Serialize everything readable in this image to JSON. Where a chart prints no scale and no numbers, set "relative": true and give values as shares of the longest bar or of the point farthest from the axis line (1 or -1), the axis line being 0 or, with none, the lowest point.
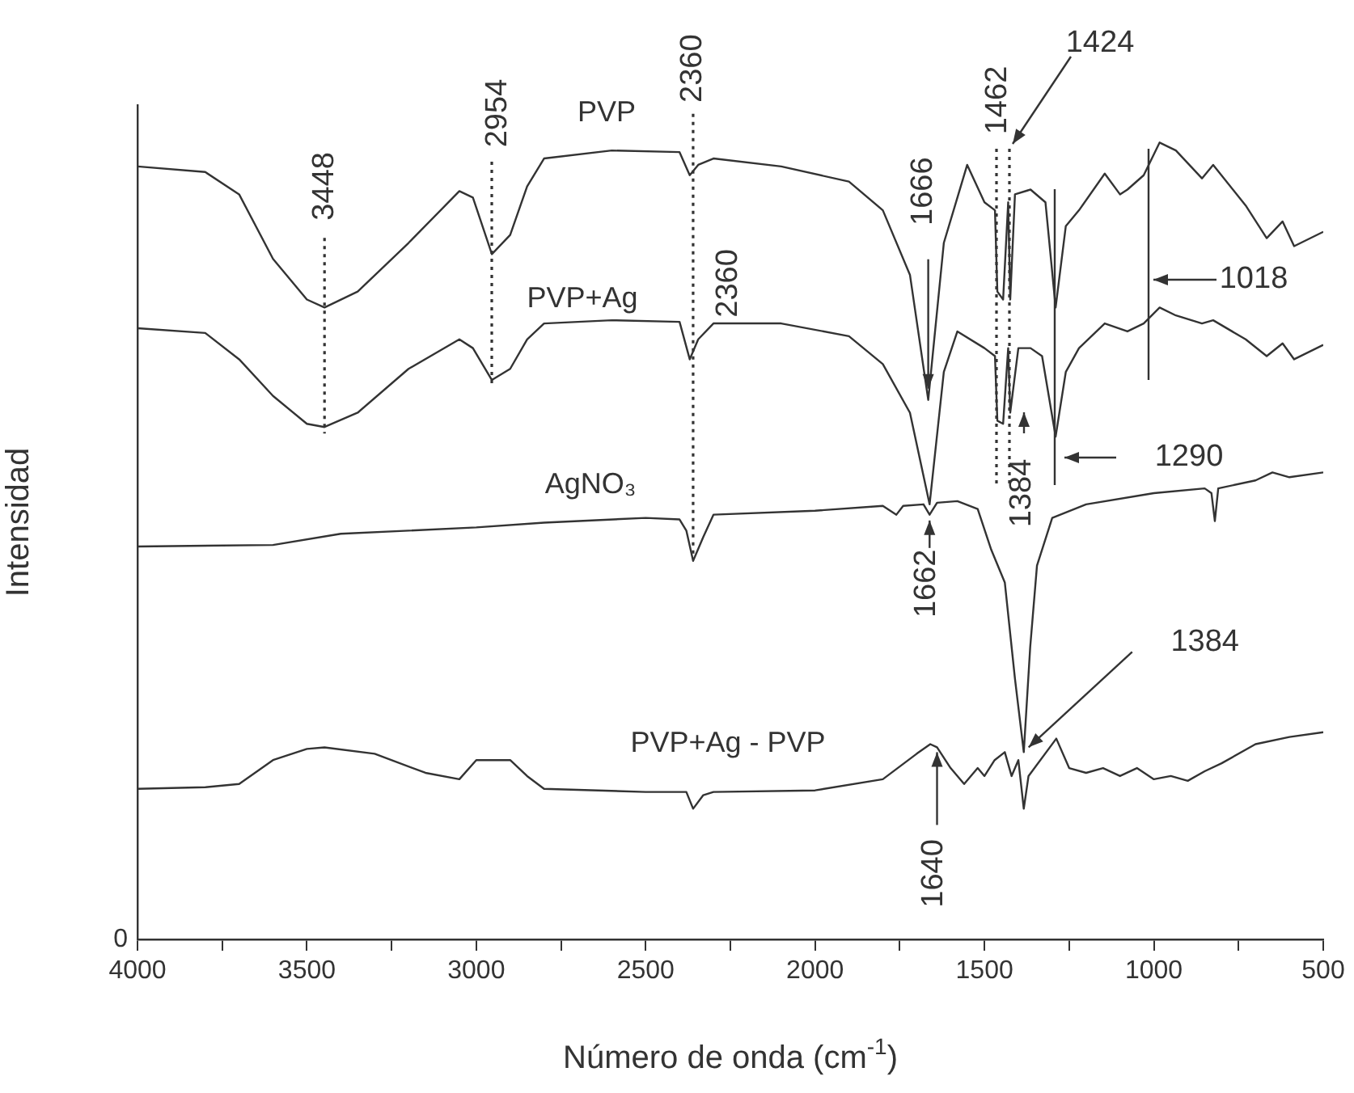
{
  "chart_data": {
    "type": "line",
    "xlabel": "Número de onda (cm$^{-1}$)",
    "ylabel": "Intensidad",
    "relative": true,
    "xlim": [
      4000,
      500
    ],
    "xticks": [
      4000,
      {
        "value": 3750,
        "label": null
      },
      3500,
      {
        "value": 3250,
        "label": null
      },
      3000,
      {
        "value": 2750,
        "label": null
      },
      2500,
      {
        "value": 2250,
        "label": null
      },
      2000,
      {
        "value": 1750,
        "label": null
      },
      1500,
      {
        "value": 1250,
        "label": null
      },
      1000,
      {
        "value": 750,
        "label": null
      },
      500
    ],
    "grid": false,
    "legend": false,
    "marker": "none",
    "line_style": "solid",
    "series": [
      {
        "name": "PVP",
        "color": "#333333",
        "x": [
          4000,
          3800,
          3700,
          3600,
          3500,
          3448,
          3350,
          3200,
          3050,
          3010,
          2954,
          2900,
          2850,
          2800,
          2600,
          2400,
          2370,
          2345,
          2300,
          2100,
          1900,
          1800,
          1720,
          1666,
          1620,
          1551,
          1500,
          1469,
          1462,
          1445,
          1430,
          1424,
          1410,
          1364,
          1320,
          1290,
          1260,
          1221,
          1145,
          1100,
          1078,
          1030,
          983,
          935,
          858,
          825,
          729,
          667,
          620,
          586,
          500
        ],
        "values": [
          0.97,
          0.963,
          0.935,
          0.854,
          0.803,
          0.793,
          0.813,
          0.874,
          0.939,
          0.931,
          0.86,
          0.884,
          0.945,
          0.98,
          0.99,
          0.988,
          0.959,
          0.972,
          0.98,
          0.97,
          0.951,
          0.915,
          0.834,
          0.677,
          0.874,
          0.972,
          0.925,
          0.915,
          0.813,
          0.803,
          0.925,
          0.803,
          0.935,
          0.941,
          0.925,
          0.793,
          0.895,
          0.915,
          0.961,
          0.935,
          0.941,
          0.959,
          1.0,
          0.99,
          0.955,
          0.972,
          0.921,
          0.88,
          0.901,
          0.87,
          0.888
        ]
      },
      {
        "name": "PVP+Ag",
        "color": "#333333",
        "x": [
          4000,
          3800,
          3700,
          3600,
          3500,
          3448,
          3350,
          3200,
          3050,
          3010,
          2954,
          2900,
          2850,
          2800,
          2600,
          2400,
          2370,
          2345,
          2300,
          2100,
          1900,
          1800,
          1720,
          1662,
          1620,
          1580,
          1500,
          1469,
          1462,
          1445,
          1430,
          1424,
          1400,
          1364,
          1330,
          1290,
          1260,
          1221,
          1145,
          1078,
          1030,
          983,
          935,
          858,
          825,
          729,
          667,
          620,
          586,
          500
        ],
        "values": [
          0.767,
          0.761,
          0.728,
          0.682,
          0.647,
          0.643,
          0.661,
          0.716,
          0.753,
          0.742,
          0.702,
          0.716,
          0.753,
          0.773,
          0.777,
          0.775,
          0.728,
          0.753,
          0.773,
          0.773,
          0.757,
          0.722,
          0.661,
          0.546,
          0.712,
          0.763,
          0.742,
          0.732,
          0.651,
          0.647,
          0.742,
          0.661,
          0.742,
          0.742,
          0.732,
          0.631,
          0.712,
          0.742,
          0.773,
          0.763,
          0.773,
          0.793,
          0.783,
          0.773,
          0.777,
          0.753,
          0.732,
          0.748,
          0.728,
          0.746
        ]
      },
      {
        "name": "AgNO₃",
        "color": "#333333",
        "x": [
          4000,
          3600,
          3400,
          3200,
          3000,
          2800,
          2500,
          2400,
          2380,
          2360,
          2330,
          2300,
          2000,
          1800,
          1760,
          1740,
          1680,
          1662,
          1640,
          1580,
          1520,
          1480,
          1440,
          1410,
          1384,
          1365,
          1345,
          1300,
          1200,
          1000,
          850,
          830,
          820,
          810,
          700,
          650,
          600,
          500
        ],
        "values": [
          0.493,
          0.495,
          0.509,
          0.513,
          0.517,
          0.523,
          0.529,
          0.527,
          0.513,
          0.475,
          0.505,
          0.533,
          0.538,
          0.544,
          0.533,
          0.544,
          0.546,
          0.533,
          0.548,
          0.55,
          0.54,
          0.489,
          0.448,
          0.327,
          0.235,
          0.367,
          0.469,
          0.529,
          0.546,
          0.56,
          0.566,
          0.56,
          0.525,
          0.566,
          0.576,
          0.586,
          0.58,
          0.586
        ]
      },
      {
        "name": "PVP+Ag - PVP",
        "color": "#333333",
        "x": [
          4000,
          3800,
          3700,
          3600,
          3500,
          3448,
          3300,
          3150,
          3050,
          3000,
          2900,
          2850,
          2800,
          2500,
          2380,
          2360,
          2330,
          2300,
          2000,
          1800,
          1700,
          1660,
          1640,
          1600,
          1560,
          1520,
          1500,
          1470,
          1440,
          1420,
          1400,
          1384,
          1370,
          1288,
          1250,
          1200,
          1150,
          1100,
          1050,
          1000,
          950,
          900,
          850,
          800,
          700,
          600,
          500
        ],
        "values": [
          0.189,
          0.191,
          0.195,
          0.225,
          0.239,
          0.241,
          0.233,
          0.209,
          0.201,
          0.225,
          0.225,
          0.205,
          0.189,
          0.185,
          0.185,
          0.164,
          0.181,
          0.185,
          0.187,
          0.201,
          0.233,
          0.245,
          0.241,
          0.215,
          0.195,
          0.215,
          0.205,
          0.225,
          0.235,
          0.205,
          0.225,
          0.164,
          0.205,
          0.252,
          0.215,
          0.209,
          0.215,
          0.205,
          0.215,
          0.201,
          0.205,
          0.199,
          0.211,
          0.221,
          0.245,
          0.254,
          0.26
        ]
      }
    ],
    "annotations": [
      {
        "text": "3448",
        "x": 3448,
        "y": 0.793
      },
      "2954",
      {
        "text": "2360",
        "x": 2360,
        "y": 0.959
      },
      {
        "text": "2360",
        "x": 2360,
        "y": 0.728
      },
      {
        "text": "1666",
        "x": 1666,
        "y": 0.677
      },
      "1462",
      "1424",
      "1018",
      "1384",
      "1290",
      {
        "text": "1662",
        "x": 1662,
        "y": 0.546
      },
      {
        "text": "1384",
        "x": 1384,
        "y": 0.235
      },
      {
        "text": "1640",
        "x": 1640,
        "y": 0.241
      },
      "0"
    ]
  }
}
